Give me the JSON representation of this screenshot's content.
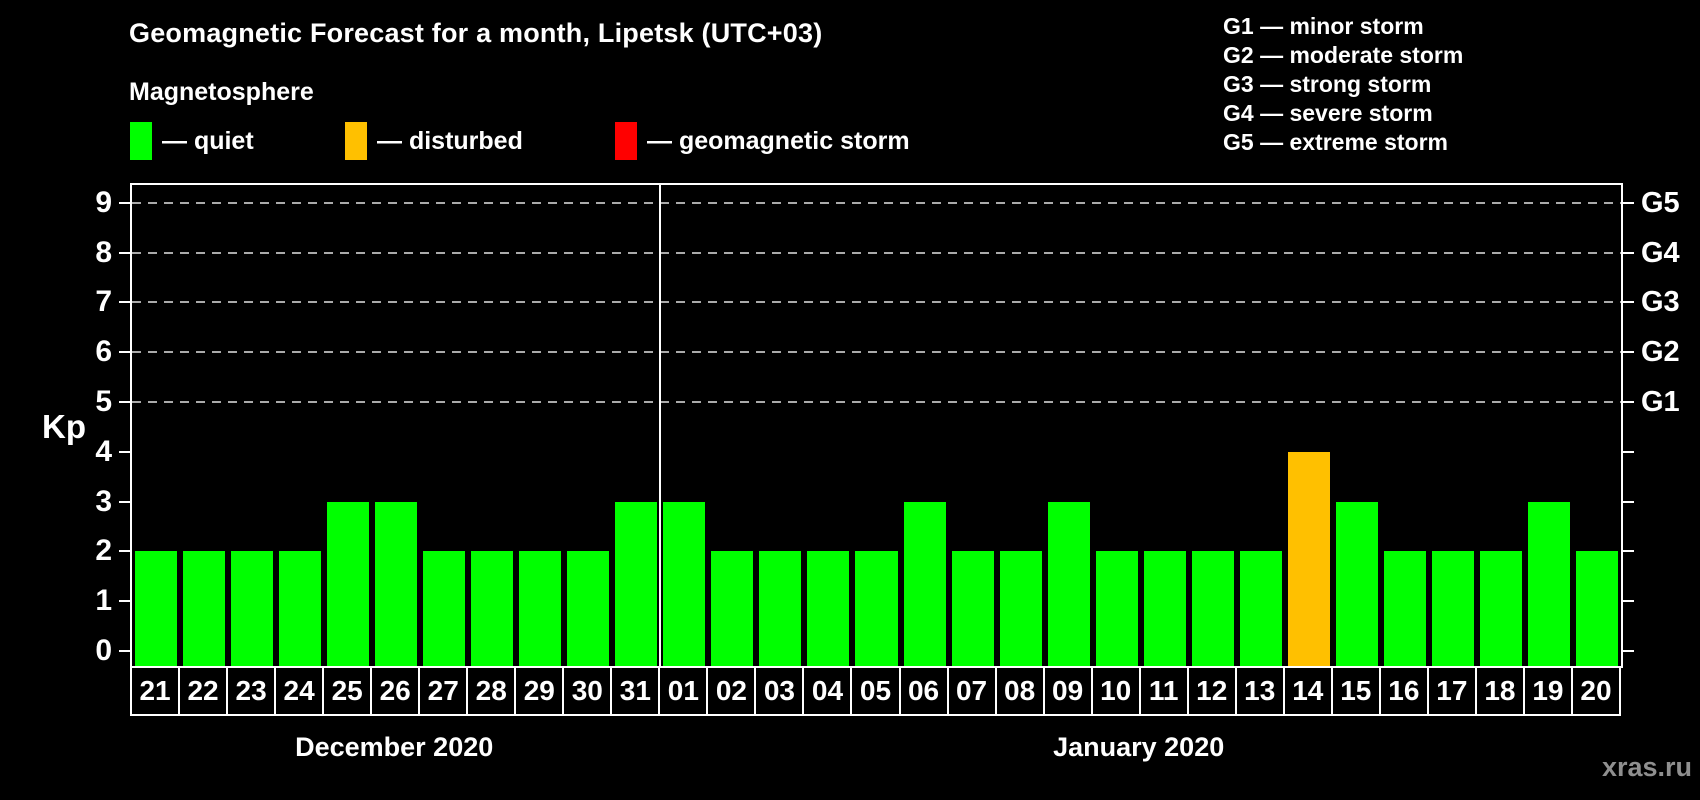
{
  "header": {
    "title": "Geomagnetic Forecast for a month, Lipetsk (UTC+03)"
  },
  "magnetosphere_legend": {
    "title": "Magnetosphere",
    "items": [
      {
        "name": "quiet",
        "swatch_color": "#00ff00",
        "label": "— quiet"
      },
      {
        "name": "disturbed",
        "swatch_color": "#ffc000",
        "label": "— disturbed"
      },
      {
        "name": "storm",
        "swatch_color": "#ff0000",
        "label": "— geomagnetic storm"
      }
    ]
  },
  "g_scale_legend": {
    "items": [
      "G1 — minor storm",
      "G2 — moderate storm",
      "G3 — strong storm",
      "G4 — severe storm",
      "G5 — extreme storm"
    ]
  },
  "chart_data": {
    "type": "bar",
    "title": "Geomagnetic Forecast for a month, Lipetsk (UTC+03)",
    "xlabel": "",
    "ylabel": "Kp",
    "ylim": [
      0,
      9
    ],
    "y_ticks": [
      0,
      1,
      2,
      3,
      4,
      5,
      6,
      7,
      8,
      9
    ],
    "gridlines_at_kp": [
      5,
      6,
      7,
      8,
      9
    ],
    "right_axis_labels": [
      {
        "kp": 5,
        "label": "G1"
      },
      {
        "kp": 6,
        "label": "G2"
      },
      {
        "kp": 7,
        "label": "G3"
      },
      {
        "kp": 8,
        "label": "G4"
      },
      {
        "kp": 9,
        "label": "G5"
      }
    ],
    "categories": [
      "21",
      "22",
      "23",
      "24",
      "25",
      "26",
      "27",
      "28",
      "29",
      "30",
      "31",
      "01",
      "02",
      "03",
      "04",
      "05",
      "06",
      "07",
      "08",
      "09",
      "10",
      "11",
      "12",
      "13",
      "14",
      "15",
      "16",
      "17",
      "18",
      "19",
      "20"
    ],
    "values": [
      2,
      2,
      2,
      2,
      3,
      3,
      2,
      2,
      2,
      2,
      3,
      3,
      2,
      2,
      2,
      2,
      3,
      2,
      2,
      3,
      2,
      2,
      2,
      2,
      4,
      3,
      2,
      2,
      2,
      3,
      2
    ],
    "statuses": [
      "quiet",
      "quiet",
      "quiet",
      "quiet",
      "quiet",
      "quiet",
      "quiet",
      "quiet",
      "quiet",
      "quiet",
      "quiet",
      "quiet",
      "quiet",
      "quiet",
      "quiet",
      "quiet",
      "quiet",
      "quiet",
      "quiet",
      "quiet",
      "quiet",
      "quiet",
      "quiet",
      "quiet",
      "disturbed",
      "quiet",
      "quiet",
      "quiet",
      "quiet",
      "quiet",
      "quiet"
    ],
    "status_colors": {
      "quiet": "#00ff00",
      "disturbed": "#ffc000",
      "storm": "#ff0000"
    },
    "months": [
      {
        "label": "December 2020",
        "day_count": 11
      },
      {
        "label": "January 2020",
        "day_count": 20
      }
    ]
  },
  "watermark": "xras.ru"
}
